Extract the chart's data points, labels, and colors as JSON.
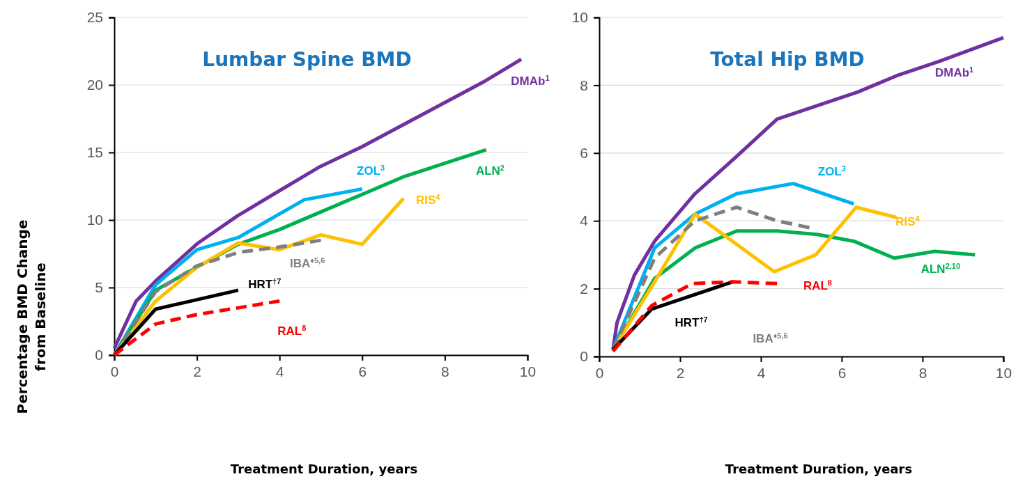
{
  "chart_data": [
    {
      "type": "line",
      "title": "Lumbar Spine BMD",
      "xlabel": "Treatment Duration, years",
      "ylabel": "Percentage BMD Change from Baseline",
      "xlim": [
        0,
        10
      ],
      "xticks": [
        0,
        2,
        4,
        6,
        8,
        10
      ],
      "ylim": [
        0,
        25
      ],
      "yticks": [
        0,
        5,
        10,
        15,
        20,
        25
      ],
      "grid": "y",
      "legend": false,
      "series": [
        {
          "name": "DMAb$^{1}$",
          "color": "#7030a0",
          "line_style": "solid",
          "x": [
            0,
            0.53,
            1.04,
            2.03,
            2.98,
            3.96,
            4.95,
            5.98,
            8.98,
            9.85
          ],
          "values": [
            0.5,
            4.0,
            5.6,
            8.3,
            10.3,
            12.1,
            13.9,
            15.4,
            20.3,
            21.9
          ]
        },
        {
          "name": "ZOL$^{3}$",
          "color": "#00b0f0",
          "line_style": "solid",
          "x": [
            0,
            1,
            2,
            3,
            4.6,
            6
          ],
          "values": [
            0,
            5.2,
            7.8,
            8.7,
            11.5,
            12.3
          ]
        },
        {
          "name": "ALN$^{2}$",
          "color": "#00b050",
          "line_style": "solid",
          "x": [
            0,
            1,
            2,
            3,
            4,
            5,
            7,
            9
          ],
          "values": [
            0,
            4.8,
            6.5,
            8.2,
            9.3,
            10.6,
            13.2,
            15.2
          ]
        },
        {
          "name": "RIS$^{4}$",
          "color": "#ffc000",
          "line_style": "solid",
          "x": [
            0,
            1,
            2,
            3,
            4,
            5,
            6,
            7
          ],
          "values": [
            0,
            4.0,
            6.5,
            8.3,
            7.8,
            8.9,
            8.2,
            11.6
          ]
        },
        {
          "name": "IBA$^{♦5,6}$",
          "color": "#7f7f7f",
          "line_style": "dashed",
          "x": [
            0,
            1,
            2,
            3,
            4,
            5
          ],
          "values": [
            0,
            4.7,
            6.6,
            7.6,
            8.0,
            8.5
          ]
        },
        {
          "name": "HRT$^{†7}$",
          "color": "#000000",
          "line_style": "solid",
          "x": [
            0,
            1,
            3
          ],
          "values": [
            0,
            3.4,
            4.8
          ]
        },
        {
          "name": "RAL$^{8}$",
          "color": "#ff0000",
          "line_style": "dashed",
          "x": [
            0,
            1,
            2,
            3,
            4
          ],
          "values": [
            0,
            2.3,
            3.0,
            3.5,
            4.0
          ]
        }
      ]
    },
    {
      "type": "line",
      "title": "Total Hip BMD",
      "xlabel": "Treatment Duration, years",
      "xlim": [
        0,
        10
      ],
      "xticks": [
        0,
        2,
        4,
        6,
        8,
        10
      ],
      "ylim": [
        0,
        10
      ],
      "yticks": [
        0,
        2,
        4,
        6,
        8,
        10
      ],
      "grid": "y",
      "legend": false,
      "series": [
        {
          "name": "DMAb$^{1}$",
          "color": "#7030a0",
          "line_style": "solid",
          "x": [
            0.34,
            0.44,
            0.87,
            1.37,
            2.37,
            3.4,
            4.4,
            5.4,
            6.4,
            7.4,
            8.4,
            10
          ],
          "values": [
            0.2,
            1.0,
            2.4,
            3.4,
            4.8,
            5.9,
            7.0,
            7.4,
            7.8,
            8.3,
            8.7,
            9.4
          ]
        },
        {
          "name": "ZOL$^{3}$",
          "color": "#00b0f0",
          "line_style": "solid",
          "x": [
            0.34,
            1.37,
            2.37,
            3.4,
            4.8,
            6.3
          ],
          "values": [
            0.2,
            3.2,
            4.2,
            4.8,
            5.1,
            4.5
          ]
        },
        {
          "name": "ALN$^{2,10}$",
          "color": "#00b050",
          "line_style": "solid",
          "x": [
            0.34,
            1.37,
            2.37,
            3.4,
            4.4,
            5.4,
            6.3,
            7.3,
            8.3,
            9.3
          ],
          "values": [
            0.2,
            2.3,
            3.2,
            3.7,
            3.7,
            3.6,
            3.4,
            2.9,
            3.1,
            3.0
          ]
        },
        {
          "name": "RIS$^{4}$",
          "color": "#ffc000",
          "line_style": "solid",
          "x": [
            0.34,
            1.37,
            2.37,
            4.33,
            5.36,
            6.36,
            7.36
          ],
          "values": [
            0.2,
            2.2,
            4.2,
            2.5,
            3.0,
            4.4,
            4.1
          ]
        },
        {
          "name": "IBA$^{♦5,6}$",
          "color": "#7f7f7f",
          "line_style": "dashed",
          "x": [
            0.34,
            1.37,
            2.37,
            3.4,
            4.4,
            5.2
          ],
          "values": [
            0.2,
            2.9,
            4.0,
            4.4,
            4.0,
            3.8
          ]
        },
        {
          "name": "HRT$^{†7}$",
          "color": "#000000",
          "line_style": "solid",
          "x": [
            0.34,
            1.3,
            2.3,
            3.3
          ],
          "values": [
            0.2,
            1.4,
            1.8,
            2.2
          ]
        },
        {
          "name": "RAL$^{8}$",
          "color": "#ff0000",
          "line_style": "dashed",
          "x": [
            0.34,
            1.3,
            2.3,
            3.3,
            4.4
          ],
          "values": [
            0.15,
            1.5,
            2.15,
            2.2,
            2.15
          ]
        }
      ]
    }
  ]
}
